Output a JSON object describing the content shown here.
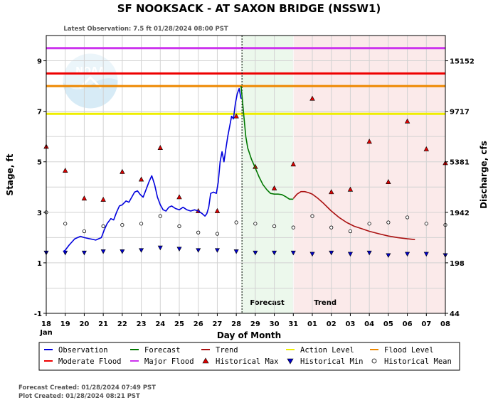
{
  "header": {
    "title": "SF NOOKSACK - AT SAXON BRIDGE  (NSSW1)",
    "latest_observation": "Latest Observation: 7.5 ft 01/28/2024 08:00 PST"
  },
  "footer": {
    "forecast_created": "Forecast Created: 01/28/2024 07:49 PST",
    "plot_created": "Plot Created: 01/28/2024 08:21 PST"
  },
  "chart_data": {
    "type": "line",
    "xlabel": "Day of Month",
    "ylabel_left": "Stage, ft",
    "ylabel_right": "Discharge, cfs",
    "x_tick_labels": [
      "18",
      "19",
      "20",
      "21",
      "22",
      "23",
      "24",
      "25",
      "26",
      "27",
      "28",
      "29",
      "30",
      "31",
      "01",
      "02",
      "03",
      "04",
      "05",
      "06",
      "07",
      "08"
    ],
    "x_month_label": "Jan",
    "ylim": [
      -1,
      10
    ],
    "y_ticks": [
      -1,
      1,
      3,
      5,
      7,
      9
    ],
    "right_ticks": [
      {
        "stage": 9,
        "label": "15152"
      },
      {
        "stage": 7,
        "label": "9717"
      },
      {
        "stage": 5,
        "label": "5381"
      },
      {
        "stage": 3,
        "label": "1942"
      },
      {
        "stage": 1,
        "label": "198"
      },
      {
        "stage": -1,
        "label": "44"
      }
    ],
    "grid": true,
    "zones": [
      {
        "label": "Forecast",
        "from": 10.25,
        "to": 13.0,
        "color": "#ecf8ec"
      },
      {
        "label": "Trend",
        "from": 13.0,
        "to": 21.0,
        "color": "#fbeaea"
      }
    ],
    "current_time": 10.3,
    "thresholds": [
      {
        "name": "Major Flood",
        "value": 9.5,
        "color": "#cc33ee"
      },
      {
        "name": "Moderate Flood",
        "value": 8.5,
        "color": "#ee0000"
      },
      {
        "name": "Flood Level",
        "value": 8.0,
        "color": "#ee8800"
      },
      {
        "name": "Action Level",
        "value": 6.9,
        "color": "#eeee00"
      }
    ],
    "series": [
      {
        "name": "Observation",
        "color": "#0000dd",
        "points": [
          [
            0.9,
            1.45
          ],
          [
            1.0,
            1.5
          ],
          [
            1.2,
            1.7
          ],
          [
            1.5,
            1.95
          ],
          [
            1.8,
            2.05
          ],
          [
            2.0,
            2.0
          ],
          [
            2.3,
            1.95
          ],
          [
            2.6,
            1.9
          ],
          [
            2.9,
            2.0
          ],
          [
            3.05,
            2.3
          ],
          [
            3.2,
            2.55
          ],
          [
            3.4,
            2.75
          ],
          [
            3.55,
            2.7
          ],
          [
            3.7,
            3.0
          ],
          [
            3.85,
            3.25
          ],
          [
            4.0,
            3.3
          ],
          [
            4.2,
            3.45
          ],
          [
            4.35,
            3.4
          ],
          [
            4.5,
            3.6
          ],
          [
            4.65,
            3.8
          ],
          [
            4.8,
            3.85
          ],
          [
            4.95,
            3.7
          ],
          [
            5.1,
            3.6
          ],
          [
            5.25,
            3.9
          ],
          [
            5.4,
            4.2
          ],
          [
            5.55,
            4.45
          ],
          [
            5.7,
            4.1
          ],
          [
            5.85,
            3.6
          ],
          [
            6.0,
            3.3
          ],
          [
            6.15,
            3.1
          ],
          [
            6.3,
            3.05
          ],
          [
            6.45,
            3.2
          ],
          [
            6.6,
            3.25
          ],
          [
            6.8,
            3.15
          ],
          [
            7.0,
            3.1
          ],
          [
            7.2,
            3.2
          ],
          [
            7.4,
            3.1
          ],
          [
            7.6,
            3.05
          ],
          [
            7.8,
            3.1
          ],
          [
            8.0,
            3.05
          ],
          [
            8.2,
            2.95
          ],
          [
            8.35,
            2.85
          ],
          [
            8.45,
            2.95
          ],
          [
            8.55,
            3.2
          ],
          [
            8.65,
            3.75
          ],
          [
            8.8,
            3.8
          ],
          [
            8.95,
            3.75
          ],
          [
            9.05,
            4.2
          ],
          [
            9.15,
            5.0
          ],
          [
            9.25,
            5.4
          ],
          [
            9.35,
            5.0
          ],
          [
            9.45,
            5.5
          ],
          [
            9.55,
            6.0
          ],
          [
            9.65,
            6.4
          ],
          [
            9.75,
            6.8
          ],
          [
            9.85,
            6.7
          ],
          [
            9.95,
            7.3
          ],
          [
            10.05,
            7.7
          ],
          [
            10.15,
            7.9
          ],
          [
            10.25,
            7.5
          ]
        ]
      },
      {
        "name": "Forecast",
        "color": "#007700",
        "points": [
          [
            10.25,
            8.0
          ],
          [
            10.3,
            7.6
          ],
          [
            10.4,
            6.8
          ],
          [
            10.5,
            6.0
          ],
          [
            10.6,
            5.55
          ],
          [
            10.8,
            5.1
          ],
          [
            11.0,
            4.75
          ],
          [
            11.2,
            4.4
          ],
          [
            11.4,
            4.1
          ],
          [
            11.6,
            3.9
          ],
          [
            11.8,
            3.75
          ],
          [
            12.0,
            3.72
          ],
          [
            12.2,
            3.72
          ],
          [
            12.4,
            3.7
          ],
          [
            12.6,
            3.62
          ],
          [
            12.8,
            3.52
          ],
          [
            13.0,
            3.52
          ]
        ]
      },
      {
        "name": "Trend",
        "color": "#aa1111",
        "points": [
          [
            13.0,
            3.55
          ],
          [
            13.2,
            3.72
          ],
          [
            13.4,
            3.82
          ],
          [
            13.6,
            3.82
          ],
          [
            13.8,
            3.78
          ],
          [
            14.0,
            3.72
          ],
          [
            14.3,
            3.55
          ],
          [
            14.6,
            3.35
          ],
          [
            15.0,
            3.05
          ],
          [
            15.4,
            2.8
          ],
          [
            15.8,
            2.6
          ],
          [
            16.2,
            2.45
          ],
          [
            16.6,
            2.35
          ],
          [
            17.0,
            2.25
          ],
          [
            17.5,
            2.15
          ],
          [
            18.0,
            2.06
          ],
          [
            18.5,
            2.0
          ],
          [
            19.0,
            1.95
          ],
          [
            19.4,
            1.92
          ]
        ]
      }
    ],
    "historical_max": [
      [
        0,
        5.6
      ],
      [
        1,
        4.65
      ],
      [
        2,
        3.55
      ],
      [
        3,
        3.5
      ],
      [
        4,
        4.6
      ],
      [
        5,
        4.3
      ],
      [
        6,
        5.55
      ],
      [
        7,
        3.6
      ],
      [
        8,
        3.05
      ],
      [
        9,
        3.05
      ],
      [
        10,
        6.8
      ],
      [
        11,
        4.8
      ],
      [
        12,
        3.95
      ],
      [
        13,
        4.9
      ],
      [
        14,
        7.5
      ],
      [
        15,
        3.8
      ],
      [
        16,
        3.9
      ],
      [
        17,
        5.8
      ],
      [
        18,
        4.2
      ],
      [
        19,
        6.6
      ],
      [
        20,
        5.5
      ],
      [
        21,
        4.95
      ]
    ],
    "historical_min": [
      [
        0,
        1.4
      ],
      [
        1,
        1.4
      ],
      [
        2,
        1.4
      ],
      [
        3,
        1.45
      ],
      [
        4,
        1.45
      ],
      [
        5,
        1.5
      ],
      [
        6,
        1.6
      ],
      [
        7,
        1.55
      ],
      [
        8,
        1.5
      ],
      [
        9,
        1.5
      ],
      [
        10,
        1.45
      ],
      [
        11,
        1.4
      ],
      [
        12,
        1.4
      ],
      [
        13,
        1.4
      ],
      [
        14,
        1.35
      ],
      [
        15,
        1.4
      ],
      [
        16,
        1.35
      ],
      [
        17,
        1.4
      ],
      [
        18,
        1.3
      ],
      [
        19,
        1.35
      ],
      [
        20,
        1.35
      ],
      [
        21,
        1.3
      ]
    ],
    "historical_mean": [
      [
        0,
        3.0
      ],
      [
        1,
        2.55
      ],
      [
        2,
        2.25
      ],
      [
        3,
        2.45
      ],
      [
        4,
        2.5
      ],
      [
        5,
        2.55
      ],
      [
        6,
        2.85
      ],
      [
        7,
        2.45
      ],
      [
        8,
        2.2
      ],
      [
        9,
        2.15
      ],
      [
        10,
        2.6
      ],
      [
        11,
        2.55
      ],
      [
        12,
        2.45
      ],
      [
        13,
        2.4
      ],
      [
        14,
        2.85
      ],
      [
        15,
        2.4
      ],
      [
        16,
        2.25
      ],
      [
        17,
        2.55
      ],
      [
        18,
        2.6
      ],
      [
        19,
        2.8
      ],
      [
        20,
        2.55
      ],
      [
        21,
        2.5
      ]
    ],
    "legend": [
      {
        "label": "Observation",
        "kind": "line",
        "color": "#0000dd"
      },
      {
        "label": "Forecast",
        "kind": "line",
        "color": "#007700"
      },
      {
        "label": "Trend",
        "kind": "line",
        "color": "#aa1111"
      },
      {
        "label": "Action Level",
        "kind": "line",
        "color": "#eeee00"
      },
      {
        "label": "Flood Level",
        "kind": "line",
        "color": "#ee8800"
      },
      {
        "label": "Moderate Flood",
        "kind": "line",
        "color": "#ee0000"
      },
      {
        "label": "Major Flood",
        "kind": "line",
        "color": "#cc33ee"
      },
      {
        "label": "Historical Max",
        "kind": "tri-up",
        "color": "#dd0000"
      },
      {
        "label": "Historical Min",
        "kind": "tri-down",
        "color": "#0000cc"
      },
      {
        "label": "Historical Mean",
        "kind": "circle",
        "color": "#ffffff"
      }
    ]
  }
}
